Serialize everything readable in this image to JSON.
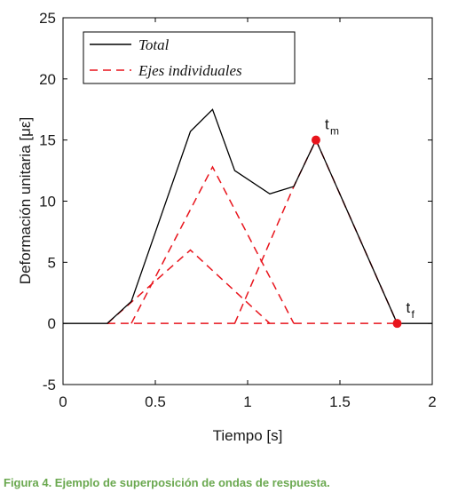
{
  "chart_data": {
    "type": "line",
    "xlabel": "Tiempo [s]",
    "ylabel": "Deformación unitaria [με]",
    "xlim": [
      0,
      2
    ],
    "ylim": [
      -5,
      25
    ],
    "xticks": [
      0,
      0.5,
      1,
      1.5,
      2
    ],
    "xtick_labels": [
      "0",
      "0.5",
      "1",
      "1.5",
      "2"
    ],
    "yticks": [
      -5,
      0,
      5,
      10,
      15,
      20,
      25
    ],
    "ytick_labels": [
      "-5",
      "0",
      "5",
      "10",
      "15",
      "20",
      "25"
    ],
    "grid": false,
    "legend_position": "top-left",
    "series": [
      {
        "name": "Total",
        "style": "solid",
        "color": "#000000",
        "x": [
          0,
          0.24,
          0.37,
          0.69,
          0.81,
          0.93,
          1.12,
          1.25,
          1.37,
          1.81,
          2.0
        ],
        "y": [
          0,
          0,
          1.8,
          15.7,
          17.5,
          12.5,
          10.6,
          11.2,
          15.0,
          0,
          0
        ]
      },
      {
        "name": "Ejes individuales",
        "style": "dashed",
        "color": "#e8141c",
        "segments": [
          {
            "x": [
              0.24,
              0.69,
              1.12
            ],
            "y": [
              0,
              6.0,
              0
            ]
          },
          {
            "x": [
              0.37,
              0.81,
              1.25
            ],
            "y": [
              0,
              12.8,
              0
            ]
          },
          {
            "x": [
              0.93,
              1.25,
              1.37,
              1.81
            ],
            "y": [
              0,
              11.2,
              15.0,
              0
            ]
          },
          {
            "x": [
              0.24,
              1.81
            ],
            "y": [
              0,
              0
            ]
          }
        ]
      }
    ],
    "markers": [
      {
        "label": "t",
        "sub": "m",
        "x": 1.37,
        "y": 15.0,
        "color": "#e8141c"
      },
      {
        "label": "t",
        "sub": "f",
        "x": 1.81,
        "y": 0,
        "color": "#e8141c"
      }
    ]
  },
  "caption": "Figura 4. Ejemplo de superposición de ondas de respuesta."
}
